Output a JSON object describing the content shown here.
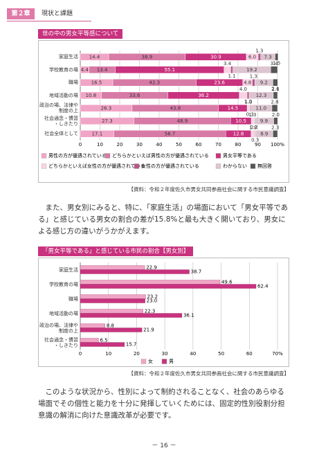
{
  "header": {
    "chapter": "第２章",
    "title": "現状と課題"
  },
  "chart_data": [
    {
      "type": "bar",
      "stacked": true,
      "title": "世の中の男女平等感について",
      "categories": [
        "家庭生活",
        "学校教育の場",
        "職場",
        "地域活動の場",
        "政治の場、法律や\n制度の上",
        "社会通念・慣習\n・しきたり",
        "社会全体として"
      ],
      "series": [
        {
          "name": "男性の方が優遇されている",
          "color": "#f1a5c6",
          "values": [
            14.4,
            4.4,
            16.5,
            10.8,
            26.3,
            27.3,
            17.1
          ]
        },
        {
          "name": "どちらかといえば男性の方が優遇されている",
          "color": "#d77aa6",
          "values": [
            38.9,
            13.4,
            42.3,
            33.6,
            43.8,
            48.9,
            56.7
          ]
        },
        {
          "name": "男女平等である",
          "color": "#c8327e",
          "values": [
            30.9,
            55.1,
            23.6,
            36.2,
            14.5,
            10.5,
            12.8
          ]
        },
        {
          "name": "どちらかといえば女性の方が優遇されている",
          "color": "#f8d3e3",
          "values": [
            6.0,
            3.4,
            4.8,
            4.0,
            1.3,
            1.3,
            1.9
          ],
          "value_labels": [
            "6.0",
            "3.4",
            "4.8",
            "4.0",
            "1.3",
            "1.3",
            "1.9"
          ]
        },
        {
          "name": "女性の方が優遇されている",
          "color": "#b9568a",
          "values": [
            1.3,
            1.1,
            1.3,
            1.0,
            0.3,
            0.2,
            0.3
          ],
          "value_labels": [
            "1.3",
            "1.1",
            "1.3",
            "1.0",
            "0.3",
            "0.2",
            "0.3"
          ]
        },
        {
          "name": "わからない",
          "color": "#dcc5d0",
          "values": [
            7.3,
            19.2,
            9.2,
            12.3,
            11.0,
            9.9,
            8.9
          ],
          "value_labels": [
            "7.3",
            "19.2",
            "9.2",
            "12.3",
            "11.0",
            "9.9",
            "8.9"
          ]
        },
        {
          "name": "無回答",
          "color": "#555555",
          "values": [
            1.5,
            3.4,
            2.4,
            2.1,
            2.8,
            2.0,
            2.3
          ],
          "value_labels": [
            "1.5",
            "3.4",
            "2.4",
            "2.1",
            "2.8",
            "2.0",
            "2.3"
          ]
        }
      ],
      "xlim": [
        0,
        100
      ],
      "xticks": [
        0,
        10,
        20,
        30,
        40,
        50,
        60,
        70,
        80,
        90,
        {
          "value": 100,
          "label": "100%"
        }
      ],
      "grid": true,
      "source": "【資料：令和２年度佐久市男女共同参画社会に関する市民意識調査】"
    },
    {
      "type": "bar",
      "stacked": false,
      "title": "「男女平等である」と感じている市民の割合【男女別】",
      "categories": [
        "家庭生活",
        "学校教育の場",
        "職場",
        "地域活動の場",
        "政治の場、法律や\n制度の上",
        "社会通念・慣習\n・しきたり"
      ],
      "series": [
        {
          "name": "女",
          "color": "#f1a5c6",
          "values": [
            22.9,
            49.6,
            23.2,
            22.3,
            8.8,
            6.5
          ]
        },
        {
          "name": "男",
          "color": "#c8327e",
          "values": [
            38.7,
            62.4,
            23.0,
            36.1,
            21.9,
            15.7
          ],
          "value_labels": [
            "38.7",
            "62.4",
            "23.0",
            "36.1",
            "21.9",
            "15.7"
          ]
        }
      ],
      "xlim": [
        0,
        70
      ],
      "xticks": [
        0,
        10,
        20,
        30,
        40,
        50,
        60,
        {
          "value": 70,
          "label": "70%"
        }
      ],
      "grid": true,
      "source": "【資料：令和２年度佐久市男女共同参画社会に関する市民意識調査】"
    }
  ],
  "paragraphs": [
    "また、男女別にみると、特に、「家庭生活」の場面において「男女平等である」と感じている男女の割合の差が15.8%と最も大きく開いており、男女による感じ方の違いがうかがえます。",
    "このような状況から、性別によって制約されることなく、社会のあらゆる場面でその個性と能力を十分に発揮していくためには、固定的性別役割分担意識の解消に向けた意識改革が必要です。"
  ],
  "page_number": "－ 16 －"
}
